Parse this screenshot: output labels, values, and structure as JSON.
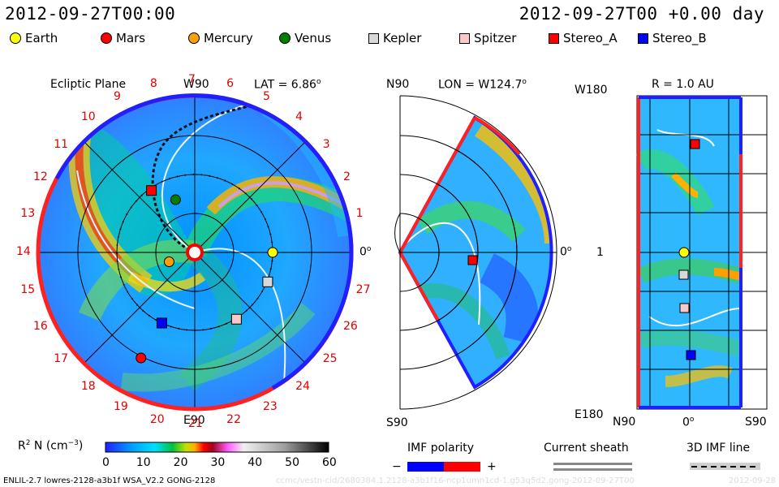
{
  "header": {
    "left_time": "2012-09-27T00:00",
    "right_time": "2012-09-27T00 +0.00 day"
  },
  "legend": [
    {
      "name": "Earth",
      "color": "#ffff00",
      "shape": "circle"
    },
    {
      "name": "Mars",
      "color": "#ff0000",
      "shape": "circle"
    },
    {
      "name": "Mercury",
      "color": "#ffa000",
      "shape": "circle"
    },
    {
      "name": "Venus",
      "color": "#008000",
      "shape": "circle"
    },
    {
      "name": "Kepler",
      "color": "#d8d8d8",
      "shape": "square"
    },
    {
      "name": "Spitzer",
      "color": "#ffc8c8",
      "shape": "square"
    },
    {
      "name": "Stereo_A",
      "color": "#ff0000",
      "shape": "square"
    },
    {
      "name": "Stereo_B",
      "color": "#0000ff",
      "shape": "square"
    }
  ],
  "panels": {
    "ecliptic": {
      "title": "Ecliptic Plane",
      "top_label": "W90",
      "lat_label": "LAT = 6.86",
      "lat_sup": "o",
      "bottom_label": "E90",
      "right_label": "0",
      "right_sup": "o"
    },
    "meridional": {
      "top_left": "N90",
      "lon_label": "LON = W124.7",
      "lon_sup": "o",
      "bottom_left": "S90",
      "right_label": "0",
      "right_sup": "o"
    },
    "radial": {
      "title": "R = 1.0 AU",
      "top_left": "W180",
      "mid_left": "1",
      "bottom_left": "E180",
      "bottom_n": "N90",
      "bottom_mid": "0",
      "bottom_mid_sup": "o",
      "bottom_s": "S90"
    }
  },
  "carrington_labels": [
    "19",
    "20",
    "21",
    "22",
    "23",
    "24",
    "25",
    "26",
    "27",
    "0",
    "1",
    "2",
    "3",
    "4",
    "5",
    "6",
    "7",
    "8",
    "9",
    "10",
    "11",
    "12",
    "13",
    "14",
    "15",
    "16",
    "17",
    "18"
  ],
  "colorbar": {
    "label": "R",
    "label_sup": "2",
    "label_rest": " N (cm",
    "label_exp": "−3",
    "label_close": ")",
    "ticks": [
      "0",
      "10",
      "20",
      "30",
      "40",
      "50",
      "60"
    ],
    "range": [
      0,
      60
    ]
  },
  "imf": {
    "title": "IMF polarity",
    "minus": "−",
    "plus": "+",
    "neg_color": "#0000ff",
    "pos_color": "#ff0000"
  },
  "sheath": {
    "title": "Current sheath"
  },
  "imf3d": {
    "title": "3D IMF line"
  },
  "footer": {
    "model": "ENLIL-2.7 lowres-2128-a3b1f WSA_V2.2 GONG-2128",
    "watermark": "ccmc/vestn-cld/2680384.1.2128-a3b1f16-ncp1umn1cd-1.g53q5d2.gong-2012-09-27T00",
    "date_tag": "2012-09-28"
  },
  "chart_data": {
    "type": "heatmap",
    "title": "",
    "colorbar_range": [
      0,
      60
    ],
    "bodies": [
      {
        "name": "Earth",
        "r_au": 1.0,
        "lon_deg": 0
      },
      {
        "name": "Mars",
        "r_au": 1.52,
        "lon_deg": -117
      },
      {
        "name": "Mercury",
        "r_au": 0.35,
        "lon_deg": -160
      },
      {
        "name": "Venus",
        "r_au": 0.72,
        "lon_deg": 110
      },
      {
        "name": "Kepler",
        "r_au": 1.01,
        "lon_deg": -22
      },
      {
        "name": "Spitzer",
        "r_au": 1.01,
        "lon_deg": -58
      },
      {
        "name": "Stereo_A",
        "r_au": 0.97,
        "lon_deg": 125
      },
      {
        "name": "Stereo_B",
        "r_au": 1.0,
        "lon_deg": -115
      }
    ]
  }
}
